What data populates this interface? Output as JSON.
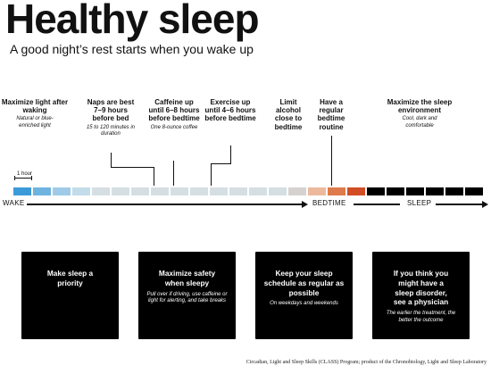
{
  "header": {
    "title": "Healthy sleep",
    "subtitle": "A good night’s rest starts when you wake up"
  },
  "tips": [
    {
      "title": "Maximize light after waking",
      "note": "Natural or blue-enriched light"
    },
    {
      "title": "Naps are best 7–9 hours before bed",
      "note": "15 to 120 minutes in duration"
    },
    {
      "title": "Caffeine up until 6–8 hours before bedtime",
      "note": "One 8-ounce coffee"
    },
    {
      "title": "Exercise up until 4–6 hours before bedtime",
      "note": ""
    },
    {
      "title": "Limit alcohol close to bedtime",
      "note": ""
    },
    {
      "title": "Have a regular bedtime routine",
      "note": ""
    },
    {
      "title": "Maximize the sleep environment",
      "note": "Cool, dark and comfortable"
    }
  ],
  "timeline": {
    "hour_label": "1 hour",
    "segment_count": 24,
    "wake_label": "WAKE",
    "bedtime_label": "BEDTIME",
    "sleep_label": "SLEEP",
    "segment_colors": [
      "#3b9bd8",
      "#6fb4e0",
      "#9fcbe8",
      "#c2dce9",
      "#d5dfe3",
      "#d5dfe3",
      "#d5dfe3",
      "#d5dfe3",
      "#d5dfe3",
      "#d5dfe3",
      "#d5dfe3",
      "#d5dfe3",
      "#d5dfe3",
      "#d5dfe3",
      "#d6d2d0",
      "#edb99d",
      "#df7a4c",
      "#d14d25",
      "#000000",
      "#000000",
      "#000000",
      "#000000",
      "#000000",
      "#000000"
    ]
  },
  "cards": [
    {
      "title": "Make sleep a priority",
      "note": ""
    },
    {
      "title": "Maximize safety when sleepy",
      "note": "Pull over if driving, use caffeine or light for alerting, and take breaks"
    },
    {
      "title": "Keep your sleep schedule as regular as possible",
      "note": "On weekdays and weekends"
    },
    {
      "title": "If you think you might have a sleep disorder, see a physician",
      "note": "The earlier the treatment, the better the outcome"
    }
  ],
  "footer": "Circadian, Light and Sleep Skills (CLASS) Program; product of the Chronobiology, Light and Sleep Laboratory"
}
